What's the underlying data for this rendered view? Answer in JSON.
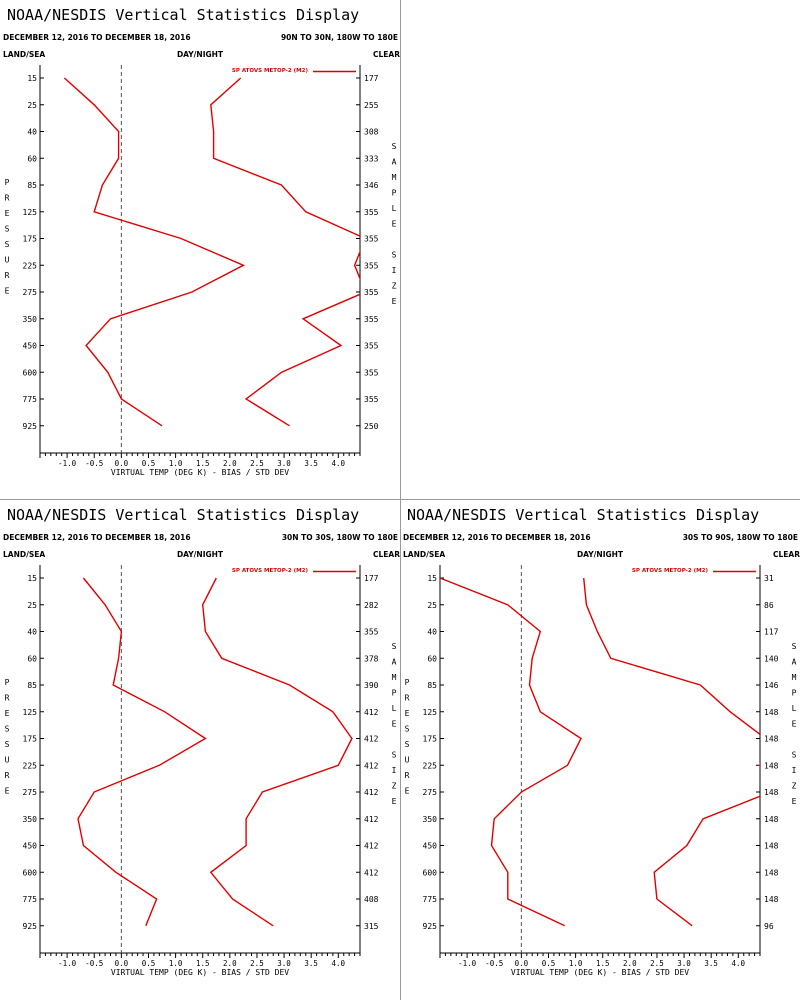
{
  "page": {
    "app_title": "NOAA/NESDIS Vertical Statistics Display",
    "date_range": "DECEMBER 12, 2016 TO DECEMBER 18, 2016",
    "land_sea": "LAND/SEA",
    "day_night": "DAY/NIGHT",
    "clear": "CLEAR",
    "y_label_letters": [
      "P",
      "R",
      "E",
      "S",
      "S",
      "U",
      "R",
      "E"
    ],
    "size_label_letters": [
      "S",
      "A",
      "M",
      "P",
      "L",
      "E",
      "",
      "S",
      "I",
      "Z",
      "E"
    ],
    "legend_label": "SP ATOVS METOP-2 (M2)",
    "x_axis_label": "VIRTUAL TEMP (DEG K) - BIAS / STD DEV",
    "x_ticks": [
      "-1.0",
      "-0.5",
      "0.0",
      "0.5",
      "1.0",
      "1.5",
      "2.0",
      "2.5",
      "3.0",
      "3.5",
      "4.0"
    ],
    "pressure_levels": [
      "15",
      "25",
      "40",
      "60",
      "85",
      "125",
      "175",
      "225",
      "275",
      "350",
      "450",
      "600",
      "775",
      "925"
    ],
    "line_color": "#e00000",
    "zero_line_color": "#555555"
  },
  "chart_data": [
    {
      "type": "line",
      "title": "NOAA/NESDIS Vertical Statistics Display",
      "region": "90N TO 30N, 180W TO 180E",
      "xlabel": "VIRTUAL TEMP (DEG K) - BIAS / STD DEV",
      "ylabel": "PRESSURE",
      "xlim": [
        -1.5,
        4.4
      ],
      "pressure": [
        15,
        25,
        40,
        60,
        85,
        125,
        175,
        225,
        275,
        350,
        450,
        600,
        775,
        925
      ],
      "sample_size": [
        "177",
        "255",
        "308",
        "333",
        "346",
        "355",
        "355",
        "355",
        "355",
        "355",
        "355",
        "355",
        "355",
        "250"
      ],
      "series": [
        {
          "name": "SP ATOVS METOP-2 (M2)",
          "kind": "bias",
          "values": [
            -1.05,
            -0.5,
            -0.05,
            -0.05,
            -0.35,
            -0.5,
            1.1,
            2.25,
            1.3,
            -0.2,
            -0.65,
            -0.25,
            0.0,
            0.75
          ]
        },
        {
          "name": "SP ATOVS METOP-2 (M2)",
          "kind": "std_dev",
          "values": [
            2.2,
            1.65,
            1.7,
            1.7,
            2.95,
            3.4,
            4.5,
            4.3,
            4.5,
            3.35,
            4.05,
            2.95,
            2.3,
            3.1
          ]
        }
      ]
    },
    {
      "type": "line",
      "title": "NOAA/NESDIS Vertical Statistics Display",
      "region": "30N TO 30S, 180W TO 180E",
      "xlabel": "VIRTUAL TEMP (DEG K) - BIAS / STD DEV",
      "ylabel": "PRESSURE",
      "xlim": [
        -1.5,
        4.4
      ],
      "pressure": [
        15,
        25,
        40,
        60,
        85,
        125,
        175,
        225,
        275,
        350,
        450,
        600,
        775,
        925
      ],
      "sample_size": [
        "177",
        "282",
        "355",
        "378",
        "390",
        "412",
        "412",
        "412",
        "412",
        "412",
        "412",
        "412",
        "408",
        "315"
      ],
      "series": [
        {
          "name": "SP ATOVS METOP-2 (M2)",
          "kind": "bias",
          "values": [
            -0.7,
            -0.3,
            0.0,
            -0.05,
            -0.15,
            0.8,
            1.55,
            0.7,
            -0.5,
            -0.8,
            -0.7,
            -0.1,
            0.65,
            0.45
          ]
        },
        {
          "name": "SP ATOVS METOP-2 (M2)",
          "kind": "std_dev",
          "values": [
            1.75,
            1.5,
            1.55,
            1.85,
            3.1,
            3.9,
            4.25,
            4.0,
            2.6,
            2.3,
            2.3,
            1.65,
            2.05,
            2.8
          ]
        }
      ]
    },
    {
      "type": "line",
      "title": "NOAA/NESDIS Vertical Statistics Display",
      "region": "30S TO 90S, 180W TO 180E",
      "xlabel": "VIRTUAL TEMP (DEG K) - BIAS / STD DEV",
      "ylabel": "PRESSURE",
      "xlim": [
        -1.5,
        4.4
      ],
      "pressure": [
        15,
        25,
        40,
        60,
        85,
        125,
        175,
        225,
        275,
        350,
        450,
        600,
        775,
        925
      ],
      "sample_size": [
        "31",
        "86",
        "117",
        "140",
        "146",
        "148",
        "148",
        "148",
        "148",
        "148",
        "148",
        "148",
        "148",
        "96"
      ],
      "series": [
        {
          "name": "SP ATOVS METOP-2 (M2)",
          "kind": "bias",
          "values": [
            -1.5,
            -0.25,
            0.35,
            0.2,
            0.15,
            0.35,
            1.1,
            0.85,
            0.0,
            -0.5,
            -0.55,
            -0.25,
            -0.25,
            0.8
          ]
        },
        {
          "name": "SP ATOVS METOP-2 (M2)",
          "kind": "std_dev",
          "values": [
            1.15,
            1.2,
            1.4,
            1.65,
            3.3,
            3.85,
            4.5,
            4.4,
            4.6,
            3.35,
            3.05,
            2.45,
            2.5,
            3.15
          ]
        }
      ]
    }
  ]
}
